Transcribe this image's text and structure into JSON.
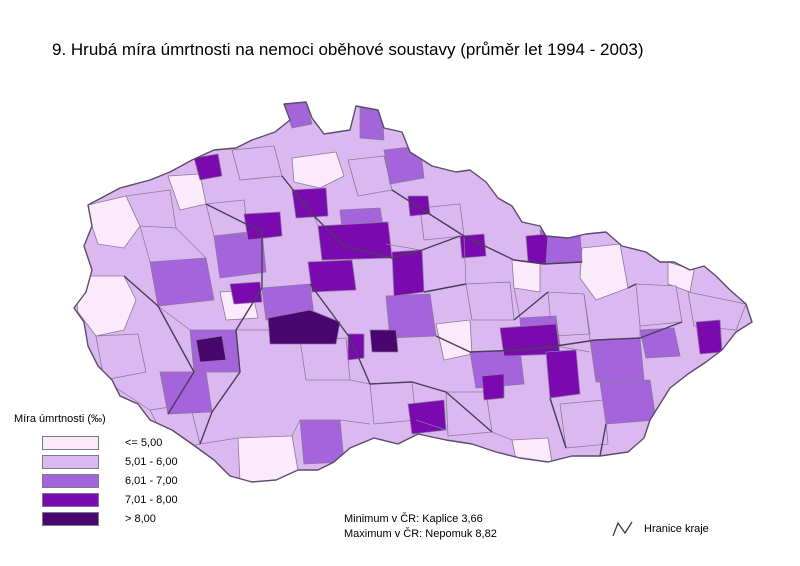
{
  "title": "9. Hrubá míra úmrtnosti na nemoci oběhové soustavy (průměr let 1994 - 2003)",
  "legend": {
    "title": "Míra úmrtnosti (‰)",
    "classes": [
      {
        "label": "<= 5,00",
        "color": "#fbeafc"
      },
      {
        "label": "5,01 - 6,00",
        "color": "#dbb8f0"
      },
      {
        "label": "6,01 - 7,00",
        "color": "#a364dc"
      },
      {
        "label": "7,01 - 8,00",
        "color": "#7a0ab0"
      },
      {
        "label": "> 8,00",
        "color": "#48066e"
      }
    ]
  },
  "stats": {
    "minimum": "Minimum v ČR: Kaplice 3,66",
    "maximum": "Maximum v ČR: Nepomuk 8,82"
  },
  "border_legend": {
    "label": "Hranice kraje"
  }
}
